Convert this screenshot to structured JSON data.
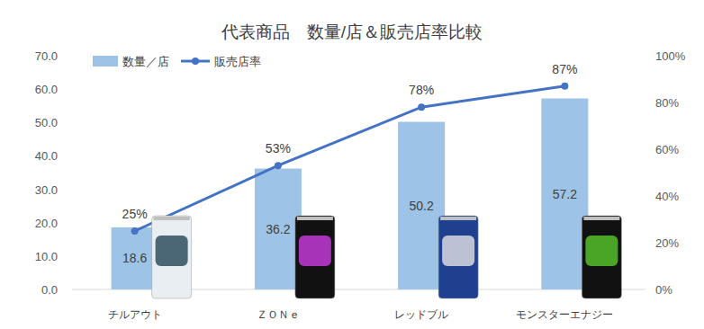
{
  "chart_data": {
    "type": "bar",
    "title": "代表商品　数量/店＆販売店率比較",
    "categories": [
      "チルアウト",
      "ＺＯＮｅ",
      "レッドブル",
      "モンスターエナジー"
    ],
    "series": [
      {
        "name": "数量／店",
        "type": "bar",
        "color": "#9dc3e6",
        "values": [
          18.6,
          36.2,
          50.2,
          57.2
        ]
      },
      {
        "name": "販売店率",
        "type": "line",
        "color": "#4472c4",
        "marker": "circle",
        "axis": "y2",
        "values": [
          25,
          53,
          78,
          87
        ],
        "value_labels": [
          "25%",
          "53%",
          "78%",
          "87%"
        ]
      }
    ],
    "ylim": [
      0,
      70
    ],
    "yticks": [
      {
        "value": 0,
        "label": "0.0"
      },
      {
        "value": 10,
        "label": "10.0"
      },
      {
        "value": 20,
        "label": "20.0"
      },
      {
        "value": 30,
        "label": "30.0"
      },
      {
        "value": 40,
        "label": "40.0"
      },
      {
        "value": 50,
        "label": "50.0"
      },
      {
        "value": 60,
        "label": "60.0"
      },
      {
        "value": 70,
        "label": "70.0"
      }
    ],
    "y2lim": [
      0,
      100
    ],
    "y2ticks": [
      {
        "value": 0,
        "label": "0%"
      },
      {
        "value": 20,
        "label": "20%"
      },
      {
        "value": 40,
        "label": "40%"
      },
      {
        "value": 60,
        "label": "60%"
      },
      {
        "value": 80,
        "label": "80%"
      },
      {
        "value": 100,
        "label": "100%"
      }
    ],
    "grid": false,
    "data_labels": true,
    "legend": "top-left"
  }
}
